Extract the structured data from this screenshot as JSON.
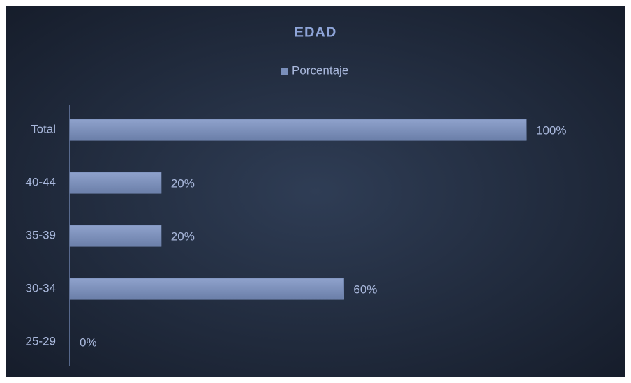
{
  "chart_data": {
    "type": "bar",
    "orientation": "horizontal",
    "title": "EDAD",
    "categories": [
      "Total",
      "40-44",
      "35-39",
      "30-34",
      "25-29"
    ],
    "series": [
      {
        "name": "Porcentaje",
        "color": "#7a8fbb",
        "values": [
          100,
          20,
          20,
          60,
          0
        ],
        "value_labels": [
          "100%",
          "20%",
          "20%",
          "60%",
          "0%"
        ]
      }
    ],
    "xlim": [
      0,
      100
    ],
    "legend": "top"
  }
}
